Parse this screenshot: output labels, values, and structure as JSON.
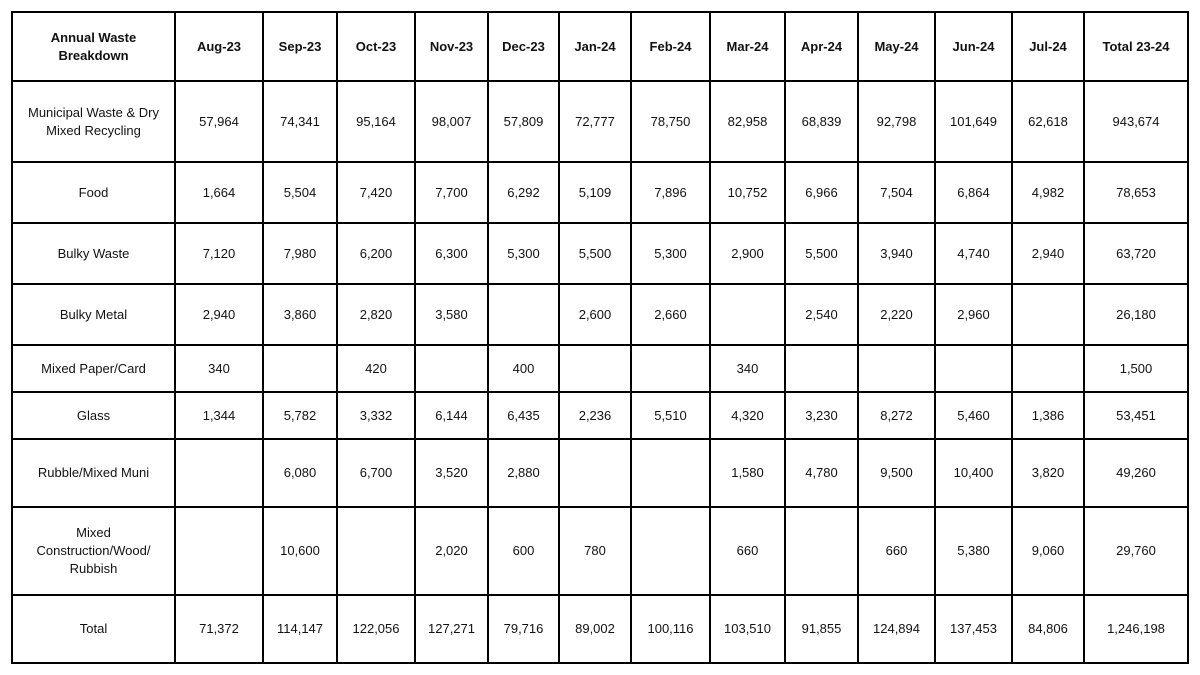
{
  "table": {
    "corner_header": "Annual Waste Breakdown",
    "columns": [
      "Aug-23",
      "Sep-23",
      "Oct-23",
      "Nov-23",
      "Dec-23",
      "Jan-24",
      "Feb-24",
      "Mar-24",
      "Apr-24",
      "May-24",
      "Jun-24",
      "Jul-24",
      "Total 23-24"
    ],
    "rows": [
      {
        "label": "Municipal Waste & Dry Mixed Recycling",
        "values": [
          "57,964",
          "74,341",
          "95,164",
          "98,007",
          "57,809",
          "72,777",
          "78,750",
          "82,958",
          "68,839",
          "92,798",
          "101,649",
          "62,618",
          "943,674"
        ]
      },
      {
        "label": "Food",
        "values": [
          "1,664",
          "5,504",
          "7,420",
          "7,700",
          "6,292",
          "5,109",
          "7,896",
          "10,752",
          "6,966",
          "7,504",
          "6,864",
          "4,982",
          "78,653"
        ]
      },
      {
        "label": "Bulky Waste",
        "values": [
          "7,120",
          "7,980",
          "6,200",
          "6,300",
          "5,300",
          "5,500",
          "5,300",
          "2,900",
          "5,500",
          "3,940",
          "4,740",
          "2,940",
          "63,720"
        ]
      },
      {
        "label": "Bulky Metal",
        "values": [
          "2,940",
          "3,860",
          "2,820",
          "3,580",
          "",
          "2,600",
          "2,660",
          "",
          "2,540",
          "2,220",
          "2,960",
          "",
          "26,180"
        ]
      },
      {
        "label": "Mixed Paper/Card",
        "values": [
          "340",
          "",
          "420",
          "",
          "400",
          "",
          "",
          "340",
          "",
          "",
          "",
          "",
          "1,500"
        ]
      },
      {
        "label": "Glass",
        "values": [
          "1,344",
          "5,782",
          "3,332",
          "6,144",
          "6,435",
          "2,236",
          "5,510",
          "4,320",
          "3,230",
          "8,272",
          "5,460",
          "1,386",
          "53,451"
        ]
      },
      {
        "label": "Rubble/Mixed Muni",
        "values": [
          "",
          "6,080",
          "6,700",
          "3,520",
          "2,880",
          "",
          "",
          "1,580",
          "4,780",
          "9,500",
          "10,400",
          "3,820",
          "49,260"
        ]
      },
      {
        "label": "Mixed Construction/Wood/ Rubbish",
        "values": [
          "",
          "10,600",
          "",
          "2,020",
          "600",
          "780",
          "",
          "660",
          "",
          "660",
          "5,380",
          "9,060",
          "29,760"
        ]
      },
      {
        "label": "Total",
        "values": [
          "71,372",
          "114,147",
          "122,056",
          "127,271",
          "79,716",
          "89,002",
          "100,116",
          "103,510",
          "91,855",
          "124,894",
          "137,453",
          "84,806",
          "1,246,198"
        ]
      }
    ]
  }
}
